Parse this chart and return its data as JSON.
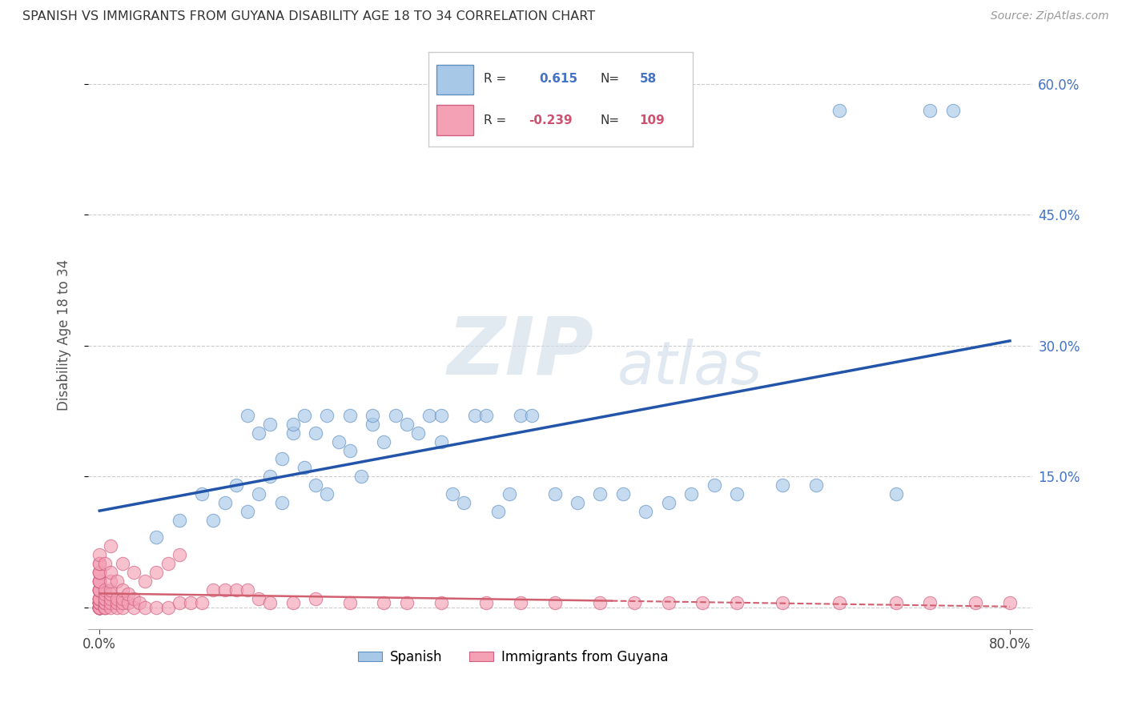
{
  "title": "SPANISH VS IMMIGRANTS FROM GUYANA DISABILITY AGE 18 TO 34 CORRELATION CHART",
  "source": "Source: ZipAtlas.com",
  "ylabel": "Disability Age 18 to 34",
  "xlim": [
    -0.01,
    0.82
  ],
  "ylim": [
    -0.025,
    0.65
  ],
  "ytick_positions": [
    0.0,
    0.15,
    0.3,
    0.45,
    0.6
  ],
  "ytick_labels": [
    "",
    "15.0%",
    "30.0%",
    "45.0%",
    "60.0%"
  ],
  "blue_R": 0.615,
  "blue_N": 58,
  "pink_R": -0.239,
  "pink_N": 109,
  "blue_color": "#A8C8E8",
  "pink_color": "#F4A0B5",
  "blue_edge_color": "#6090C0",
  "pink_edge_color": "#D06080",
  "blue_line_color": "#2255AA",
  "pink_line_color": "#D06070",
  "legend_blue_label": "Spanish",
  "legend_pink_label": "Immigrants from Guyana",
  "watermark_zip": "ZIP",
  "watermark_atlas": "atlas",
  "blue_scatter_x": [
    0.05,
    0.07,
    0.09,
    0.1,
    0.11,
    0.12,
    0.13,
    0.13,
    0.14,
    0.14,
    0.15,
    0.15,
    0.16,
    0.16,
    0.17,
    0.17,
    0.18,
    0.18,
    0.19,
    0.19,
    0.2,
    0.2,
    0.21,
    0.22,
    0.22,
    0.23,
    0.24,
    0.24,
    0.25,
    0.26,
    0.27,
    0.28,
    0.29,
    0.3,
    0.3,
    0.31,
    0.32,
    0.33,
    0.34,
    0.35,
    0.36,
    0.37,
    0.38,
    0.4,
    0.42,
    0.44,
    0.46,
    0.48,
    0.5,
    0.52,
    0.54,
    0.56,
    0.6,
    0.63,
    0.65,
    0.7,
    0.73,
    0.75
  ],
  "blue_scatter_y": [
    0.08,
    0.1,
    0.13,
    0.1,
    0.12,
    0.14,
    0.11,
    0.22,
    0.13,
    0.2,
    0.15,
    0.21,
    0.12,
    0.17,
    0.2,
    0.21,
    0.16,
    0.22,
    0.14,
    0.2,
    0.13,
    0.22,
    0.19,
    0.18,
    0.22,
    0.15,
    0.21,
    0.22,
    0.19,
    0.22,
    0.21,
    0.2,
    0.22,
    0.19,
    0.22,
    0.13,
    0.12,
    0.22,
    0.22,
    0.11,
    0.13,
    0.22,
    0.22,
    0.13,
    0.12,
    0.13,
    0.13,
    0.11,
    0.12,
    0.13,
    0.14,
    0.13,
    0.14,
    0.14,
    0.57,
    0.13,
    0.57,
    0.57
  ],
  "pink_scatter_x": [
    0.0,
    0.0,
    0.0,
    0.0,
    0.0,
    0.0,
    0.0,
    0.0,
    0.0,
    0.0,
    0.0,
    0.0,
    0.0,
    0.0,
    0.0,
    0.0,
    0.0,
    0.0,
    0.0,
    0.0,
    0.0,
    0.0,
    0.0,
    0.0,
    0.0,
    0.0,
    0.0,
    0.0,
    0.0,
    0.0,
    0.0,
    0.0,
    0.0,
    0.0,
    0.0,
    0.0,
    0.0,
    0.0,
    0.0,
    0.0,
    0.005,
    0.005,
    0.005,
    0.005,
    0.005,
    0.005,
    0.005,
    0.005,
    0.005,
    0.005,
    0.01,
    0.01,
    0.01,
    0.01,
    0.01,
    0.01,
    0.01,
    0.01,
    0.015,
    0.015,
    0.015,
    0.015,
    0.02,
    0.02,
    0.02,
    0.02,
    0.02,
    0.025,
    0.025,
    0.03,
    0.03,
    0.03,
    0.035,
    0.04,
    0.04,
    0.05,
    0.05,
    0.06,
    0.06,
    0.07,
    0.07,
    0.08,
    0.09,
    0.1,
    0.11,
    0.12,
    0.13,
    0.14,
    0.15,
    0.17,
    0.19,
    0.22,
    0.25,
    0.27,
    0.3,
    0.34,
    0.37,
    0.4,
    0.44,
    0.47,
    0.5,
    0.53,
    0.56,
    0.6,
    0.65,
    0.7,
    0.73,
    0.77,
    0.8
  ],
  "pink_scatter_y": [
    0.0,
    0.0,
    0.0,
    0.0,
    0.0,
    0.0,
    0.0,
    0.0,
    0.0,
    0.0,
    0.0,
    0.0,
    0.005,
    0.005,
    0.005,
    0.005,
    0.005,
    0.005,
    0.005,
    0.01,
    0.01,
    0.01,
    0.01,
    0.01,
    0.02,
    0.02,
    0.02,
    0.02,
    0.02,
    0.02,
    0.03,
    0.03,
    0.03,
    0.03,
    0.04,
    0.04,
    0.04,
    0.05,
    0.05,
    0.06,
    0.0,
    0.0,
    0.0,
    0.005,
    0.005,
    0.01,
    0.01,
    0.015,
    0.02,
    0.05,
    0.0,
    0.005,
    0.01,
    0.015,
    0.02,
    0.03,
    0.04,
    0.07,
    0.0,
    0.005,
    0.01,
    0.03,
    0.0,
    0.005,
    0.01,
    0.02,
    0.05,
    0.005,
    0.015,
    0.0,
    0.01,
    0.04,
    0.005,
    0.0,
    0.03,
    0.0,
    0.04,
    0.0,
    0.05,
    0.005,
    0.06,
    0.005,
    0.005,
    0.02,
    0.02,
    0.02,
    0.02,
    0.01,
    0.005,
    0.005,
    0.01,
    0.005,
    0.005,
    0.005,
    0.005,
    0.005,
    0.005,
    0.005,
    0.005,
    0.005,
    0.005,
    0.005,
    0.005,
    0.005,
    0.005,
    0.005,
    0.005,
    0.005,
    0.005
  ]
}
